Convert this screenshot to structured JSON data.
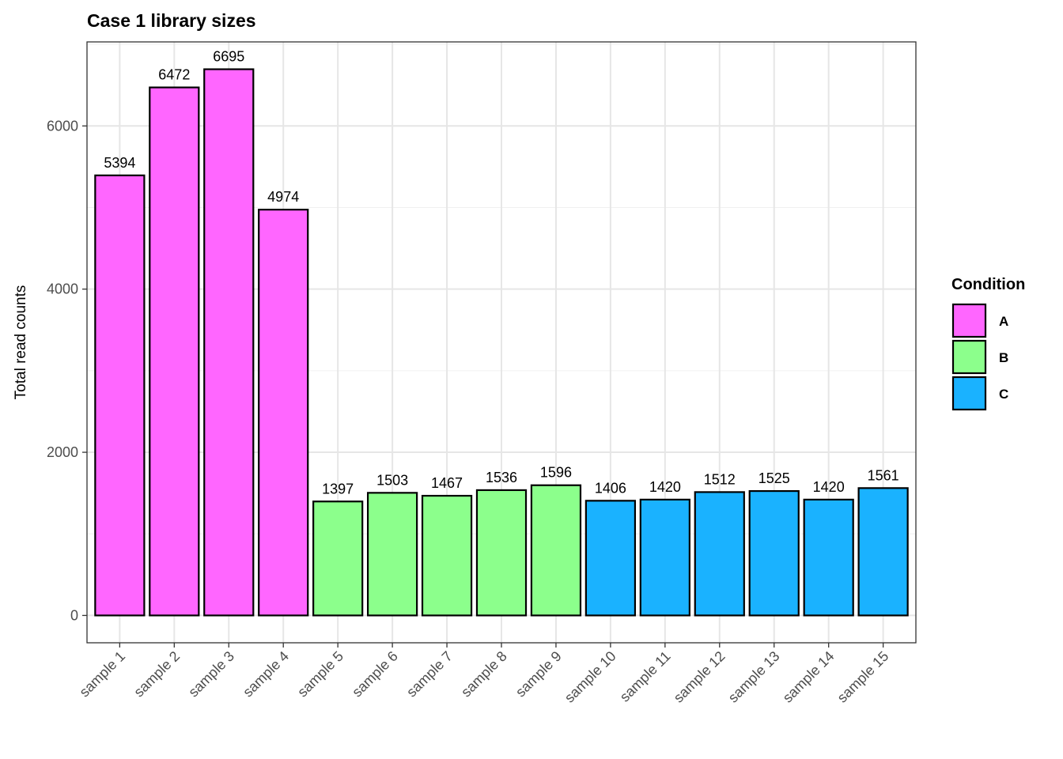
{
  "chart_data": {
    "type": "bar",
    "title": "Case 1 library sizes",
    "xlabel": "",
    "ylabel": "Total read counts",
    "categories": [
      "sample 1",
      "sample 2",
      "sample 3",
      "sample 4",
      "sample 5",
      "sample 6",
      "sample 7",
      "sample 8",
      "sample 9",
      "sample 10",
      "sample 11",
      "sample 12",
      "sample 13",
      "sample 14",
      "sample 15"
    ],
    "values": [
      5394,
      6472,
      6695,
      4974,
      1397,
      1503,
      1467,
      1536,
      1596,
      1406,
      1420,
      1512,
      1525,
      1420,
      1561
    ],
    "value_labels": [
      "5394",
      "6472",
      "6695",
      "4974",
      "1397",
      "1503",
      "1467",
      "1536",
      "1596",
      "1406",
      "1420",
      "1512",
      "1525",
      "1420",
      "1561"
    ],
    "groups": [
      "A",
      "A",
      "A",
      "A",
      "B",
      "B",
      "B",
      "B",
      "B",
      "C",
      "C",
      "C",
      "C",
      "C",
      "C"
    ],
    "ylim": [
      -335,
      7030
    ],
    "yticks": [
      0,
      2000,
      4000,
      6000
    ],
    "ytick_labels": [
      "0",
      "2000",
      "4000",
      "6000"
    ],
    "grid": true,
    "legend": {
      "title": "Condition",
      "placement": "right",
      "entries": [
        {
          "label": "A",
          "color": "#ff66ff"
        },
        {
          "label": "B",
          "color": "#8cff8c"
        },
        {
          "label": "C",
          "color": "#1ab2ff"
        }
      ]
    }
  }
}
